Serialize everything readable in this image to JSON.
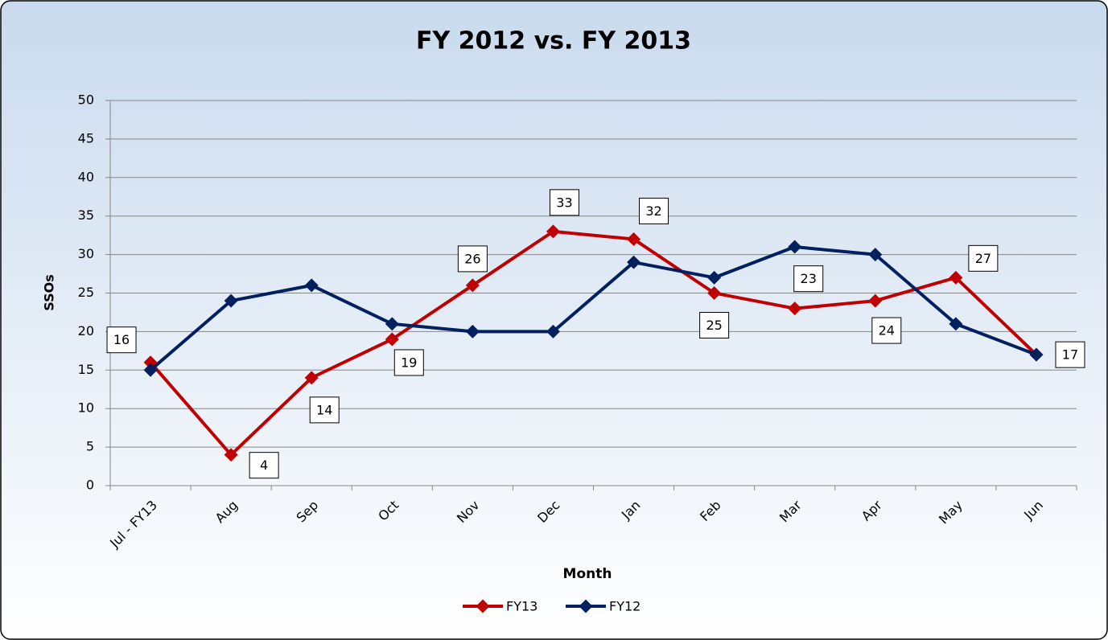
{
  "chart_data": {
    "type": "line",
    "title": "FY 2012 vs. FY 2013",
    "x_label": "Month",
    "y_label": "SSOs",
    "categories": [
      "Jul - FY13",
      "Aug",
      "Sep",
      "Oct",
      "Nov",
      "Dec",
      "Jan",
      "Feb",
      "Mar",
      "Apr",
      "May",
      "Jun"
    ],
    "series": [
      {
        "name": "FY13",
        "color": "#c00000",
        "values": [
          16,
          4,
          14,
          19,
          26,
          33,
          32,
          25,
          23,
          24,
          27,
          17
        ],
        "data_labels": true
      },
      {
        "name": "FY12",
        "color": "#002060",
        "values": [
          15,
          24,
          26,
          21,
          20,
          20,
          29,
          27,
          31,
          30,
          21,
          17
        ],
        "data_labels": false
      }
    ],
    "ylim": [
      0,
      50
    ],
    "yticks": [
      0,
      5,
      10,
      15,
      20,
      25,
      30,
      35,
      40,
      45,
      50
    ],
    "grid": true,
    "legend": "bottom"
  }
}
